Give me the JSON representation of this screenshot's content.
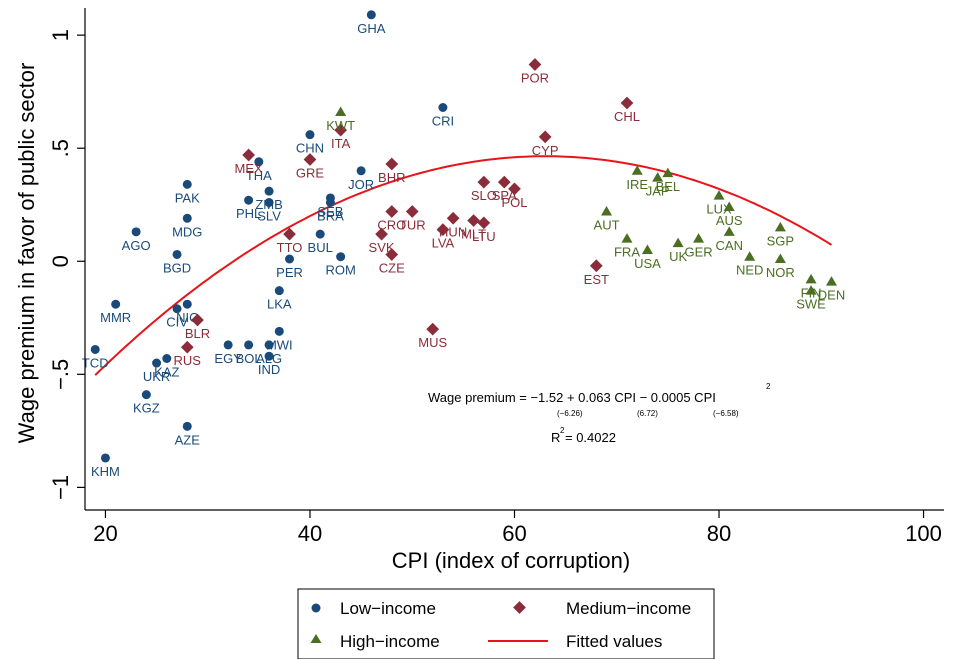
{
  "chart_data": {
    "type": "scatter",
    "xlabel": "CPI (index of corruption)",
    "ylabel": "Wage premium in favor of public sector",
    "xlim": [
      18,
      102
    ],
    "ylim": [
      -1.1,
      1.12
    ],
    "xticks": [
      20,
      40,
      60,
      80,
      100
    ],
    "yticks": [
      -1,
      -0.5,
      0,
      0.5,
      1
    ],
    "xtick_labels": [
      "20",
      "40",
      "60",
      "80",
      "100"
    ],
    "ytick_labels": [
      "−1",
      "−.5",
      "0",
      ".5",
      "1"
    ],
    "grid": false,
    "legend_position": "bottom",
    "colors": {
      "low": "#1a4a7a",
      "medium": "#8b2c3a",
      "high": "#4a6e22",
      "fit": "#e8141a"
    },
    "fit": {
      "coefficients": [
        -1.52,
        0.063,
        -0.0005
      ],
      "x_range": [
        19,
        91
      ],
      "equation_main": "Wage premium = −1.52 + 0.063 CPI − 0.0005 CPI",
      "equation_exp": "2",
      "tstat_1": "(−6.26)",
      "tstat_2": "(6.72)",
      "tstat_3": "(−6.58)",
      "r2_label": "R",
      "r2_exp": "2",
      "r2_value": "= 0.4022"
    },
    "series": [
      {
        "name": "Low−income",
        "key": "low",
        "marker": "circle",
        "points": [
          {
            "label": "GHA",
            "x": 46,
            "y": 1.09
          },
          {
            "label": "CRI",
            "x": 53,
            "y": 0.68
          },
          {
            "label": "CHN",
            "x": 40,
            "y": 0.56
          },
          {
            "label": "THA",
            "x": 35,
            "y": 0.44
          },
          {
            "label": "JOR",
            "x": 45,
            "y": 0.4
          },
          {
            "label": "PAK",
            "x": 28,
            "y": 0.34
          },
          {
            "label": "ZMB",
            "x": 36,
            "y": 0.31
          },
          {
            "label": "SEB",
            "x": 42,
            "y": 0.28
          },
          {
            "label": "BRA",
            "x": 42,
            "y": 0.26
          },
          {
            "label": "PHL",
            "x": 34,
            "y": 0.27
          },
          {
            "label": "SLV",
            "x": 36,
            "y": 0.26
          },
          {
            "label": "MDG",
            "x": 28,
            "y": 0.19
          },
          {
            "label": "AGO",
            "x": 23,
            "y": 0.13
          },
          {
            "label": "BUL",
            "x": 41,
            "y": 0.12
          },
          {
            "label": "BGD",
            "x": 27,
            "y": 0.03
          },
          {
            "label": "ROM",
            "x": 43,
            "y": 0.02
          },
          {
            "label": "PER",
            "x": 38,
            "y": 0.01
          },
          {
            "label": "LKA",
            "x": 37,
            "y": -0.13
          },
          {
            "label": "MMR",
            "x": 21,
            "y": -0.19
          },
          {
            "label": "NIC",
            "x": 28,
            "y": -0.19
          },
          {
            "label": "CIV",
            "x": 27,
            "y": -0.21
          },
          {
            "label": "MWI",
            "x": 37,
            "y": -0.31
          },
          {
            "label": "EGY",
            "x": 32,
            "y": -0.37
          },
          {
            "label": "BOL",
            "x": 34,
            "y": -0.37
          },
          {
            "label": "TCD",
            "x": 19,
            "y": -0.39
          },
          {
            "label": "ALG",
            "x": 36,
            "y": -0.37
          },
          {
            "label": "IND",
            "x": 36,
            "y": -0.42
          },
          {
            "label": "KAZ",
            "x": 26,
            "y": -0.43
          },
          {
            "label": "UKR",
            "x": 25,
            "y": -0.45
          },
          {
            "label": "KGZ",
            "x": 24,
            "y": -0.59
          },
          {
            "label": "AZE",
            "x": 28,
            "y": -0.73
          },
          {
            "label": "KHM",
            "x": 20,
            "y": -0.87
          }
        ]
      },
      {
        "name": "Medium−income",
        "key": "medium",
        "marker": "diamond",
        "points": [
          {
            "label": "POR",
            "x": 62,
            "y": 0.87
          },
          {
            "label": "CHL",
            "x": 71,
            "y": 0.7
          },
          {
            "label": "ITA",
            "x": 43,
            "y": 0.58
          },
          {
            "label": "CYP",
            "x": 63,
            "y": 0.55
          },
          {
            "label": "MEX",
            "x": 34,
            "y": 0.47
          },
          {
            "label": "GRE",
            "x": 40,
            "y": 0.45
          },
          {
            "label": "BHR",
            "x": 48,
            "y": 0.43
          },
          {
            "label": "SLO",
            "x": 57,
            "y": 0.35
          },
          {
            "label": "SPA",
            "x": 59,
            "y": 0.35
          },
          {
            "label": "POL",
            "x": 60,
            "y": 0.32
          },
          {
            "label": "CRO",
            "x": 48,
            "y": 0.22
          },
          {
            "label": "TUR",
            "x": 50,
            "y": 0.22
          },
          {
            "label": "HUN",
            "x": 54,
            "y": 0.19
          },
          {
            "label": "MLT",
            "x": 56,
            "y": 0.18
          },
          {
            "label": "LTU",
            "x": 57,
            "y": 0.17
          },
          {
            "label": "LVA",
            "x": 53,
            "y": 0.14
          },
          {
            "label": "SVK",
            "x": 47,
            "y": 0.12
          },
          {
            "label": "TTO",
            "x": 38,
            "y": 0.12
          },
          {
            "label": "CZE",
            "x": 48,
            "y": 0.03
          },
          {
            "label": "EST",
            "x": 68,
            "y": -0.02
          },
          {
            "label": "BLR",
            "x": 29,
            "y": -0.26
          },
          {
            "label": "MUS",
            "x": 52,
            "y": -0.3
          },
          {
            "label": "RUS",
            "x": 28,
            "y": -0.38
          }
        ]
      },
      {
        "name": "High−income",
        "key": "high",
        "marker": "triangle",
        "points": [
          {
            "label": "KWT",
            "x": 43,
            "y": 0.66
          },
          {
            "label": "IRE",
            "x": 72,
            "y": 0.4
          },
          {
            "label": "BEL",
            "x": 75,
            "y": 0.39
          },
          {
            "label": "JAP",
            "x": 74,
            "y": 0.37
          },
          {
            "label": "LUX",
            "x": 80,
            "y": 0.29
          },
          {
            "label": "AUS",
            "x": 81,
            "y": 0.24
          },
          {
            "label": "AUT",
            "x": 69,
            "y": 0.22
          },
          {
            "label": "SGP",
            "x": 86,
            "y": 0.15
          },
          {
            "label": "CAN",
            "x": 81,
            "y": 0.13
          },
          {
            "label": "FRA",
            "x": 71,
            "y": 0.1
          },
          {
            "label": "GER",
            "x": 78,
            "y": 0.1
          },
          {
            "label": "UK",
            "x": 76,
            "y": 0.08
          },
          {
            "label": "USA",
            "x": 73,
            "y": 0.05
          },
          {
            "label": "NED",
            "x": 83,
            "y": 0.02
          },
          {
            "label": "NOR",
            "x": 86,
            "y": 0.01
          },
          {
            "label": "DEN",
            "x": 91,
            "y": -0.09
          },
          {
            "label": "FIN",
            "x": 89,
            "y": -0.08
          },
          {
            "label": "SWE",
            "x": 89,
            "y": -0.13
          }
        ]
      }
    ],
    "legend": {
      "low": "Low−income",
      "medium": "Medium−income",
      "high": "High−income",
      "fit": "Fitted values"
    }
  }
}
